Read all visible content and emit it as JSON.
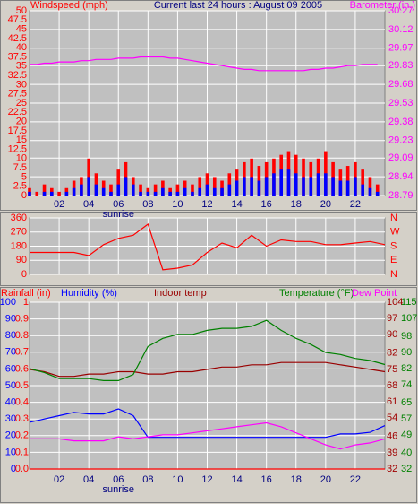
{
  "chart_data": [
    {
      "type": "bar",
      "title": "Current last 24 hours : August 09 2005",
      "ylabel": "Windspeed (mph)",
      "y2label": "Barometer (in.)",
      "x": [
        0,
        0.5,
        1,
        1.5,
        2,
        2.5,
        3,
        3.5,
        4,
        4.5,
        5,
        5.5,
        6,
        6.5,
        7,
        7.5,
        8,
        8.5,
        9,
        9.5,
        10,
        10.5,
        11,
        11.5,
        12,
        12.5,
        13,
        13.5,
        14,
        14.5,
        15,
        15.5,
        16,
        16.5,
        17,
        17.5,
        18,
        18.5,
        19,
        19.5,
        20,
        20.5,
        21,
        21.5,
        22,
        22.5,
        23,
        23.5
      ],
      "xlim": [
        0,
        24
      ],
      "xticks": [
        {
          "value": 2,
          "label": "02"
        },
        {
          "value": 4,
          "label": "04"
        },
        {
          "value": 6,
          "label": "06"
        },
        {
          "value": 8,
          "label": "08"
        },
        10,
        12,
        14,
        16,
        18,
        20,
        22
      ],
      "annotations": [
        {
          "text": "sunrise",
          "x": 6
        }
      ],
      "ylim": [
        0,
        50
      ],
      "yticks": [
        0,
        2.5,
        5,
        7.5,
        10,
        12.5,
        15,
        17.5,
        20,
        22.5,
        25,
        27.5,
        30,
        32.5,
        35,
        37.5,
        40,
        42.5,
        45,
        47.5,
        50
      ],
      "y2lim": [
        28.79,
        30.27
      ],
      "y2ticks": [
        28.79,
        28.94,
        29.09,
        29.23,
        29.38,
        29.53,
        29.68,
        29.83,
        29.97,
        30.12,
        30.27
      ],
      "hgrid": "y2",
      "series": [
        {
          "color": "#ff0000",
          "values": [
            2,
            1,
            3,
            2,
            1,
            2,
            4,
            5,
            10,
            6,
            4,
            3,
            7,
            9,
            5,
            3,
            2,
            3,
            4,
            2,
            3,
            4,
            3,
            5,
            6,
            5,
            4,
            6,
            7,
            9,
            10,
            8,
            9,
            10,
            11,
            12,
            11,
            10,
            9,
            10,
            12,
            9,
            7,
            8,
            9,
            7,
            5,
            3
          ]
        },
        {
          "color": "#0000ff",
          "values": [
            1,
            0,
            1,
            1,
            0,
            1,
            2,
            3,
            5,
            3,
            2,
            1,
            3,
            5,
            3,
            1,
            1,
            1,
            2,
            1,
            1,
            2,
            1,
            2,
            3,
            2,
            2,
            3,
            4,
            5,
            5,
            4,
            5,
            6,
            7,
            7,
            6,
            5,
            5,
            6,
            6,
            5,
            4,
            4,
            5,
            3,
            2,
            1
          ]
        },
        {
          "color": "#ff00ff",
          "type": "line",
          "axis": "y2",
          "values": [
            29.84,
            29.84,
            29.85,
            29.85,
            29.86,
            29.86,
            29.86,
            29.87,
            29.87,
            29.88,
            29.88,
            29.88,
            29.89,
            29.89,
            29.89,
            29.9,
            29.9,
            29.9,
            29.9,
            29.89,
            29.89,
            29.88,
            29.87,
            29.86,
            29.85,
            29.84,
            29.83,
            29.82,
            29.81,
            29.8,
            29.8,
            29.79,
            29.79,
            29.79,
            29.79,
            29.79,
            29.79,
            29.79,
            29.8,
            29.8,
            29.81,
            29.81,
            29.82,
            29.83,
            29.83,
            29.84,
            29.84,
            29.84
          ]
        }
      ]
    },
    {
      "type": "line",
      "x": [
        0,
        1,
        2,
        3,
        4,
        5,
        6,
        7,
        8,
        9,
        10,
        11,
        12,
        13,
        14,
        15,
        16,
        17,
        18,
        19,
        20,
        21,
        22,
        23,
        24
      ],
      "xlim": [
        0,
        24
      ],
      "xticks": [
        2,
        4,
        6,
        8,
        10,
        12,
        14,
        16,
        18,
        20,
        22
      ],
      "ylim": [
        0,
        360
      ],
      "yticks": [
        0,
        90,
        180,
        270,
        360
      ],
      "y2lim": [
        0,
        360
      ],
      "y2ticks": [
        {
          "value": 360,
          "label": "N"
        },
        {
          "value": 270,
          "label": "W"
        },
        {
          "value": 180,
          "label": "S"
        },
        {
          "value": 90,
          "label": "E"
        },
        {
          "value": 0,
          "label": "N"
        }
      ],
      "hgrid": "y",
      "series": [
        {
          "color": "#ff0000",
          "values": [
            140,
            140,
            140,
            140,
            120,
            190,
            230,
            250,
            320,
            30,
            40,
            60,
            140,
            200,
            170,
            250,
            180,
            220,
            210,
            210,
            190,
            190,
            200,
            210,
            190
          ]
        }
      ]
    },
    {
      "type": "line",
      "x": [
        0,
        1,
        2,
        3,
        4,
        5,
        6,
        7,
        8,
        9,
        10,
        11,
        12,
        13,
        14,
        15,
        16,
        17,
        18,
        19,
        20,
        21,
        22,
        23,
        24
      ],
      "xlim": [
        0,
        24
      ],
      "xticks": [
        {
          "value": 2,
          "label": "02"
        },
        {
          "value": 4,
          "label": "04"
        },
        {
          "value": 6,
          "label": "06"
        },
        {
          "value": 8,
          "label": "08"
        },
        10,
        12,
        14,
        16,
        18,
        20,
        22
      ],
      "annotations": [
        {
          "text": "sunrise",
          "x": 6
        }
      ],
      "ylim": [
        0,
        100
      ],
      "yticks": [
        0,
        10,
        20,
        30,
        40,
        50,
        60,
        70,
        80,
        90,
        100
      ],
      "y2lim": [
        0,
        1
      ],
      "y2ticks": [
        {
          "value": 0,
          "label": "0.0"
        },
        0.1,
        0.2,
        0.3,
        0.4,
        0.5,
        0.6,
        0.7,
        0.8,
        0.9,
        1
      ],
      "y3lim": [
        32,
        104
      ],
      "y3ticks": [
        32,
        39,
        46,
        54,
        61,
        68,
        75,
        82,
        90,
        97,
        104
      ],
      "y4lim": [
        32,
        115
      ],
      "y4ticks": [
        32,
        40,
        49,
        57,
        65,
        74,
        82,
        90,
        98,
        107,
        115
      ],
      "hgrid": "y",
      "series": [
        {
          "name": "Rainfall (in)",
          "color": "#ff0000",
          "axis": "y2",
          "values": [
            0,
            0,
            0,
            0,
            0,
            0,
            0,
            0,
            0,
            0,
            0,
            0,
            0,
            0,
            0,
            0,
            0,
            0,
            0,
            0,
            0,
            0,
            0,
            0,
            0
          ]
        },
        {
          "name": "Humidity (%)",
          "color": "#0000ff",
          "axis": "y",
          "values": [
            28,
            30,
            32,
            34,
            33,
            33,
            36,
            32,
            19,
            19,
            19,
            19,
            19,
            19,
            19,
            19,
            19,
            19,
            19,
            19,
            19,
            21,
            21,
            22,
            26
          ]
        },
        {
          "name": "Indoor temp",
          "color": "#990000",
          "axis": "y3",
          "values": [
            75,
            74,
            72,
            72,
            73,
            73,
            74,
            74,
            73,
            73,
            74,
            74,
            75,
            76,
            76,
            77,
            77,
            78,
            78,
            78,
            78,
            77,
            76,
            75,
            74
          ]
        },
        {
          "name": "Temperature (°F)",
          "color": "#008000",
          "axis": "y4",
          "values": [
            82,
            80,
            77,
            77,
            77,
            76,
            76,
            79,
            93,
            97,
            99,
            99,
            101,
            102,
            102,
            103,
            106,
            101,
            97,
            94,
            90,
            89,
            87,
            86,
            84
          ]
        },
        {
          "name": "Dew Point",
          "color": "#ff00ff",
          "axis": "y4",
          "values": [
            47,
            47,
            47,
            46,
            46,
            46,
            48,
            47,
            48,
            49,
            49,
            50,
            51,
            52,
            53,
            54,
            55,
            53,
            50,
            47,
            44,
            42,
            44,
            45,
            47
          ]
        }
      ]
    }
  ]
}
